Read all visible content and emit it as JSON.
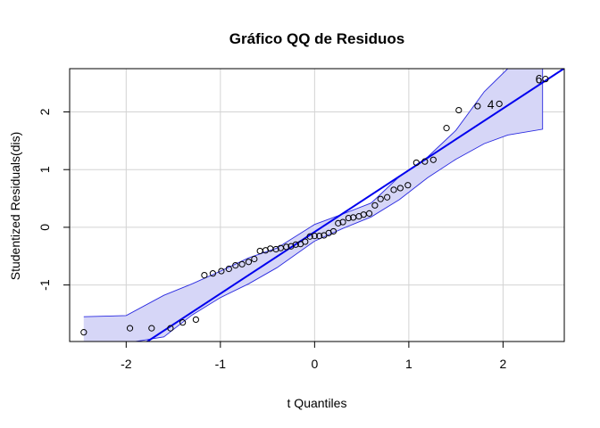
{
  "chart_data": {
    "type": "scatter",
    "title": "Gráfico QQ de Residuos",
    "xlabel": "t Quantiles",
    "ylabel": "Studentized Residuals(dis)",
    "xlim": [
      -2.6,
      2.65
    ],
    "ylim": [
      -1.98,
      2.75
    ],
    "x_ticks": [
      -2,
      -1,
      0,
      1,
      2
    ],
    "x_tick_labels": [
      "-2",
      "-1",
      "0",
      "1",
      "2"
    ],
    "y_ticks": [
      -1,
      0,
      1,
      2
    ],
    "y_tick_labels": [
      "-1",
      "0",
      "1",
      "2"
    ],
    "grid": true,
    "colors": {
      "line": "#0000ee",
      "band_fill": "#d6d6f7",
      "band_edge": "#2a2ae0",
      "points": "#000000",
      "grid": "#d3d3d3"
    },
    "reference_line": {
      "intercept": -0.08,
      "slope": 1.07
    },
    "band_upper": [
      [
        -2.45,
        -1.55
      ],
      [
        -2.0,
        -1.53
      ],
      [
        -1.6,
        -1.18
      ],
      [
        -1.3,
        -0.98
      ],
      [
        -1.0,
        -0.76
      ],
      [
        -0.7,
        -0.53
      ],
      [
        -0.4,
        -0.36
      ],
      [
        0.0,
        0.05
      ],
      [
        0.3,
        0.23
      ],
      [
        0.6,
        0.42
      ],
      [
        0.9,
        0.88
      ],
      [
        1.2,
        1.22
      ],
      [
        1.5,
        1.68
      ],
      [
        1.8,
        2.35
      ],
      [
        2.05,
        2.75
      ]
    ],
    "band_lower": [
      [
        -2.45,
        -1.98
      ],
      [
        -1.9,
        -1.98
      ],
      [
        -1.6,
        -1.9
      ],
      [
        -1.3,
        -1.52
      ],
      [
        -1.0,
        -1.22
      ],
      [
        -0.7,
        -0.98
      ],
      [
        -0.4,
        -0.7
      ],
      [
        0.0,
        -0.24
      ],
      [
        0.3,
        -0.02
      ],
      [
        0.6,
        0.18
      ],
      [
        0.9,
        0.48
      ],
      [
        1.2,
        0.86
      ],
      [
        1.5,
        1.18
      ],
      [
        1.8,
        1.45
      ],
      [
        2.05,
        1.6
      ],
      [
        2.42,
        1.7
      ]
    ],
    "band_right_x": 2.42,
    "points": [
      {
        "x": -2.45,
        "y": -1.82
      },
      {
        "x": -1.96,
        "y": -1.75
      },
      {
        "x": -1.73,
        "y": -1.75
      },
      {
        "x": -1.53,
        "y": -1.75
      },
      {
        "x": -1.4,
        "y": -1.65
      },
      {
        "x": -1.26,
        "y": -1.6
      },
      {
        "x": -1.17,
        "y": -0.83
      },
      {
        "x": -1.08,
        "y": -0.8
      },
      {
        "x": -0.99,
        "y": -0.76
      },
      {
        "x": -0.91,
        "y": -0.72
      },
      {
        "x": -0.84,
        "y": -0.66
      },
      {
        "x": -0.77,
        "y": -0.64
      },
      {
        "x": -0.7,
        "y": -0.6
      },
      {
        "x": -0.64,
        "y": -0.55
      },
      {
        "x": -0.58,
        "y": -0.41
      },
      {
        "x": -0.52,
        "y": -0.4
      },
      {
        "x": -0.47,
        "y": -0.37
      },
      {
        "x": -0.41,
        "y": -0.38
      },
      {
        "x": -0.36,
        "y": -0.36
      },
      {
        "x": -0.3,
        "y": -0.34
      },
      {
        "x": -0.25,
        "y": -0.33
      },
      {
        "x": -0.2,
        "y": -0.3
      },
      {
        "x": -0.15,
        "y": -0.29
      },
      {
        "x": -0.1,
        "y": -0.25
      },
      {
        "x": -0.05,
        "y": -0.16
      },
      {
        "x": 0.0,
        "y": -0.15
      },
      {
        "x": 0.05,
        "y": -0.15
      },
      {
        "x": 0.1,
        "y": -0.14
      },
      {
        "x": 0.15,
        "y": -0.1
      },
      {
        "x": 0.2,
        "y": -0.07
      },
      {
        "x": 0.25,
        "y": 0.07
      },
      {
        "x": 0.3,
        "y": 0.09
      },
      {
        "x": 0.36,
        "y": 0.16
      },
      {
        "x": 0.41,
        "y": 0.17
      },
      {
        "x": 0.47,
        "y": 0.19
      },
      {
        "x": 0.52,
        "y": 0.22
      },
      {
        "x": 0.58,
        "y": 0.24
      },
      {
        "x": 0.64,
        "y": 0.38
      },
      {
        "x": 0.7,
        "y": 0.49
      },
      {
        "x": 0.77,
        "y": 0.52
      },
      {
        "x": 0.84,
        "y": 0.65
      },
      {
        "x": 0.91,
        "y": 0.68
      },
      {
        "x": 0.99,
        "y": 0.73
      },
      {
        "x": 1.08,
        "y": 1.12
      },
      {
        "x": 1.17,
        "y": 1.14
      },
      {
        "x": 1.26,
        "y": 1.17
      },
      {
        "x": 1.4,
        "y": 1.72
      },
      {
        "x": 1.53,
        "y": 2.03
      },
      {
        "x": 1.73,
        "y": 2.1
      },
      {
        "x": 1.96,
        "y": 2.14
      },
      {
        "x": 2.45,
        "y": 2.57
      }
    ],
    "labels": [
      {
        "text": "4",
        "x": 1.87,
        "y": 2.13
      },
      {
        "text": "6",
        "x": 2.38,
        "y": 2.57
      }
    ]
  }
}
